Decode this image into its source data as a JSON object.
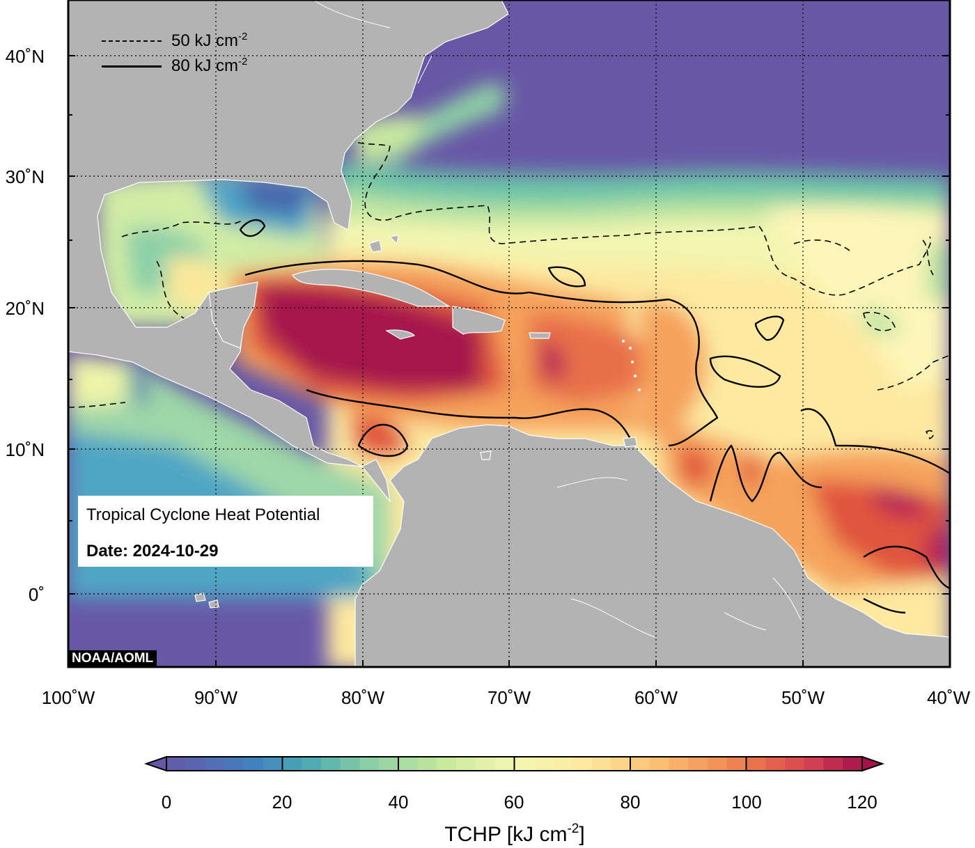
{
  "map": {
    "title": "Tropical Cyclone Heat Potential",
    "date_label": "Date: 2024-10-29",
    "credit": "NOAA/AOML",
    "lat_labels": [
      "40˚N",
      "30˚N",
      "20˚N",
      "10˚N",
      "0˚"
    ],
    "lon_labels": [
      "100˚W",
      "90˚W",
      "80˚W",
      "70˚W",
      "60˚W",
      "50˚W",
      "40˚W"
    ],
    "extent": {
      "lon_min": -100,
      "lon_max": -40,
      "lat_min": -5,
      "lat_max": 44
    },
    "grid": "dotted",
    "legend": [
      {
        "style": "dashed",
        "text": "50 kJ cm",
        "sup": "-2"
      },
      {
        "style": "solid",
        "text": "80 kJ cm",
        "sup": "-2"
      }
    ],
    "colors": {
      "land": "#b3b3b3",
      "ocean_cold": "#6758a6",
      "hot": "#a5124c"
    }
  },
  "colorbar": {
    "label": "TCHP [kJ cm",
    "label_sup": "-2",
    "label_close": "]",
    "ticks": [
      "0",
      "20",
      "40",
      "60",
      "80",
      "100",
      "120"
    ],
    "range": [
      0,
      120
    ],
    "bins": 36,
    "extend": "both"
  }
}
